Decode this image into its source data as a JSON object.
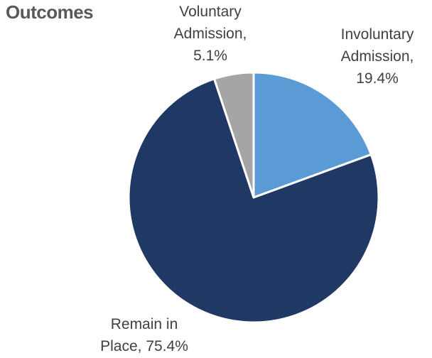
{
  "chart_data": {
    "type": "pie",
    "title": "Outcomes",
    "slices": [
      {
        "label_lines": [
          "Involuntary",
          "Admission,",
          "19.4%"
        ],
        "value": 19.4,
        "color": "#5B9BD5"
      },
      {
        "label_lines": [
          "Remain in",
          "Place, 75.4%"
        ],
        "value": 75.4,
        "color": "#1F3864"
      },
      {
        "label_lines": [
          "Voluntary",
          "Admission,",
          "5.1%"
        ],
        "value": 5.1,
        "color": "#A5A5A5"
      }
    ],
    "start_angle_deg": 0,
    "direction": "clockwise",
    "legend": "none"
  }
}
